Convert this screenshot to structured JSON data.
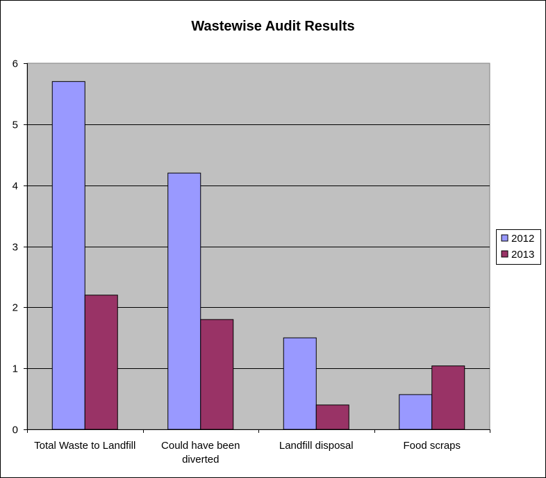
{
  "chart_data": {
    "type": "bar",
    "title": "Wastewise Audit Results",
    "categories": [
      [
        "Total Waste to Landfill"
      ],
      [
        "Could have been",
        "diverted"
      ],
      [
        "Landfill disposal"
      ],
      [
        "Food scraps"
      ]
    ],
    "series": [
      {
        "name": "2012",
        "color": "#9999ff",
        "values": [
          5.7,
          4.2,
          1.5,
          0.57
        ]
      },
      {
        "name": "2013",
        "color": "#993366",
        "values": [
          2.2,
          1.8,
          0.4,
          1.04
        ]
      }
    ],
    "ylim": [
      0,
      6
    ],
    "yticks": [
      0,
      1,
      2,
      3,
      4,
      5,
      6
    ],
    "grid": true,
    "legend_position": "right",
    "plot_background": "#c0c0c0"
  }
}
